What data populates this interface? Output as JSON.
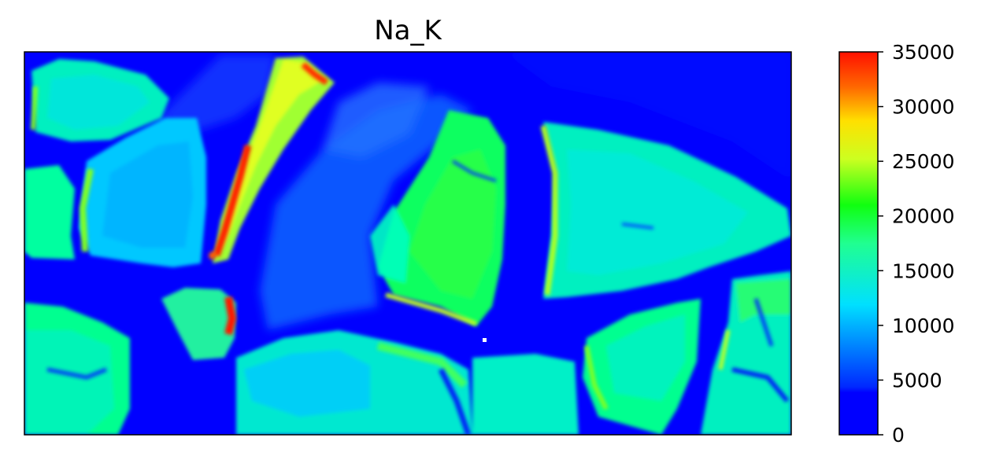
{
  "chart_data": {
    "type": "heatmap",
    "title": "Na_K",
    "xlabel": "",
    "ylabel": "",
    "colormap": "jet",
    "value_range": [
      0,
      35000
    ],
    "colorbar": {
      "ticks": [
        0,
        5000,
        10000,
        15000,
        20000,
        25000,
        30000,
        35000
      ],
      "tick_labels": [
        "0",
        "5000",
        "10000",
        "15000",
        "20000",
        "25000",
        "30000",
        "35000"
      ]
    },
    "grid": false,
    "axis_ticks_visible": false,
    "background_value": 0,
    "regions": [
      {
        "name": "upper-left-block",
        "typical_value": 12000
      },
      {
        "name": "left-middle-block",
        "typical_value": 10000
      },
      {
        "name": "lower-left-block",
        "typical_value": 12000
      },
      {
        "name": "bright-diagonal-strip",
        "typical_value": 22000,
        "peak_value": 35000
      },
      {
        "name": "small-center-left-block",
        "typical_value": 14000,
        "peak_value": 34000
      },
      {
        "name": "center-left-faint-block",
        "typical_value": 4500
      },
      {
        "name": "center-green-block",
        "typical_value": 17000
      },
      {
        "name": "right-large-block",
        "typical_value": 11000
      },
      {
        "name": "bottom-center-block",
        "typical_value": 12000
      },
      {
        "name": "bottom-right-block",
        "typical_value": 12000
      },
      {
        "name": "top-right-corner",
        "typical_value": 1000
      }
    ]
  }
}
